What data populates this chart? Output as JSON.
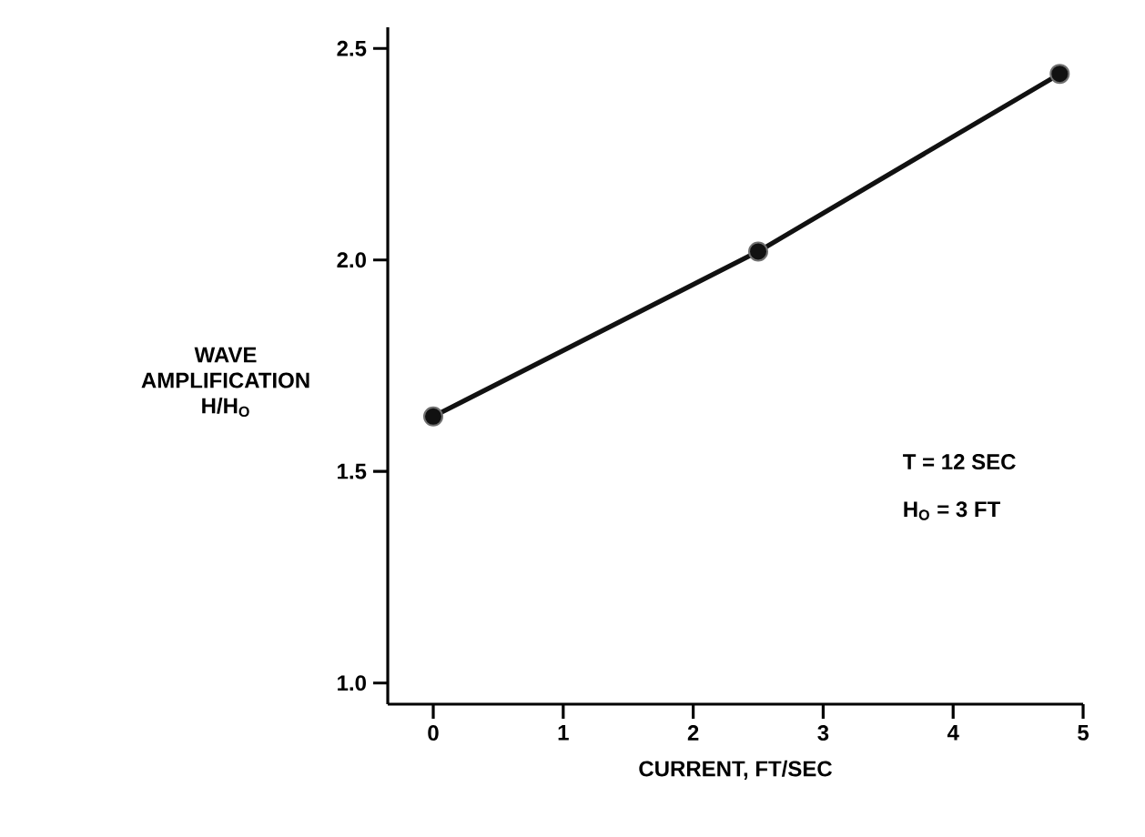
{
  "chart_data": {
    "type": "line",
    "xlabel": "CURRENT, FT/SEC",
    "ylabel": "WAVE AMPLIFICATION H/H$_{O}$",
    "x": [
      0,
      2.5,
      4.82
    ],
    "series": [
      {
        "color": "#111111",
        "values": [
          1.63,
          2.02,
          2.44
        ]
      }
    ],
    "xlim": [
      -0.35,
      5.0
    ],
    "ylim": [
      0.95,
      2.55
    ],
    "xticks": [
      0,
      1,
      2,
      3,
      4,
      5
    ],
    "yticks": [
      {
        "value": 1,
        "label": "1.0"
      },
      1.5,
      {
        "value": 2,
        "label": "2.0"
      },
      2.5
    ],
    "marker": "circle",
    "line_style": "solid",
    "annotations": [
      "T = 12 SEC",
      "H$_{O}$ = 3 FT"
    ]
  }
}
